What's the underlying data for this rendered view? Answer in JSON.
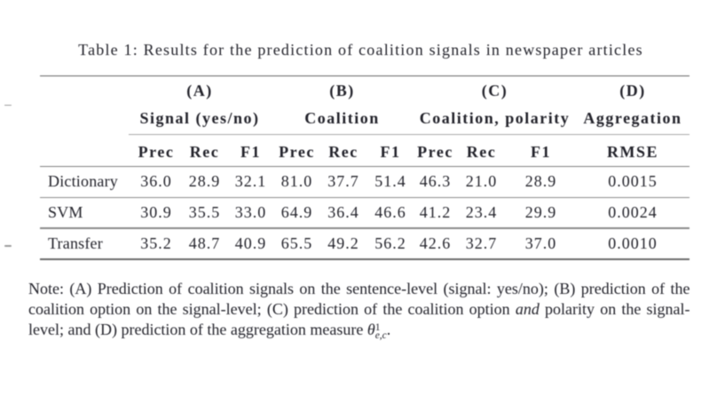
{
  "caption": {
    "text": "Table 1: Results for the prediction of coalition signals in newspaper articles"
  },
  "table": {
    "groups": [
      {
        "id": "(A)",
        "name": "Signal (yes/no)",
        "cols": [
          "Prec",
          "Rec",
          "F1"
        ]
      },
      {
        "id": "(B)",
        "name": "Coalition",
        "cols": [
          "Prec",
          "Rec",
          "F1"
        ]
      },
      {
        "id": "(C)",
        "name": "Coalition, polarity",
        "cols": [
          "Prec",
          "Rec",
          "F1"
        ]
      },
      {
        "id": "(D)",
        "name": "Aggregation",
        "cols": [
          "RMSE"
        ]
      }
    ],
    "rows": [
      {
        "label": "Dictionary",
        "values": [
          "36.0",
          "28.9",
          "32.1",
          "81.0",
          "37.7",
          "51.4",
          "46.3",
          "21.0",
          "28.9",
          "0.0015"
        ]
      },
      {
        "label": "SVM",
        "values": [
          "30.9",
          "35.5",
          "33.0",
          "64.9",
          "36.4",
          "46.6",
          "41.2",
          "23.4",
          "29.9",
          "0.0024"
        ]
      },
      {
        "label": "Transfer",
        "values": [
          "35.2",
          "48.7",
          "40.9",
          "65.5",
          "49.2",
          "56.2",
          "42.6",
          "32.7",
          "37.0",
          "0.0010"
        ]
      }
    ]
  },
  "note": {
    "line1": "Note: (A) Prediction of coalition signals on the sentence-level (signal: yes/no); (B) prediction of the",
    "line2_pre": "coalition option on the signal-level; (C) prediction of the coalition option",
    "line2_italic": "and",
    "line2_post": "polarity on the signal-",
    "line3_pre": "level; and (D) prediction of the aggregation measure",
    "theta_symbol": "θ",
    "theta_sup": "1",
    "theta_sub": "e,c",
    "line3_end": "."
  }
}
